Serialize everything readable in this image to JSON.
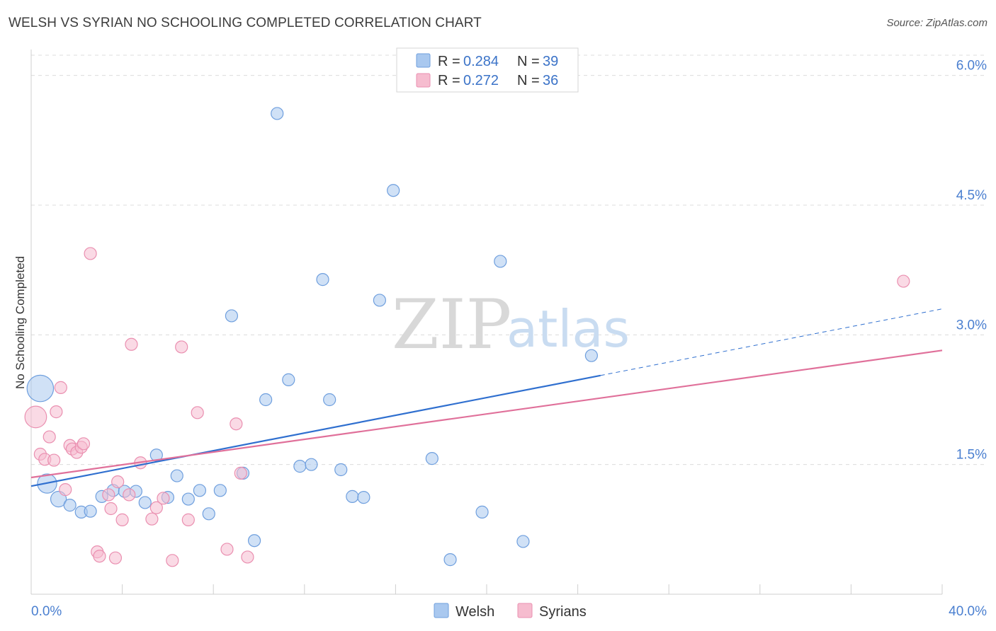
{
  "title": "WELSH VS SYRIAN NO SCHOOLING COMPLETED CORRELATION CHART",
  "source": "Source: ZipAtlas.com",
  "watermark": {
    "zip": "ZIP",
    "atlas": "atlas"
  },
  "colors": {
    "welsh_fill": "#a9c8ef",
    "welsh_stroke": "#6f9fde",
    "welsh_line": "#2f6fcf",
    "syrian_fill": "#f6bccf",
    "syrian_stroke": "#ea8fb0",
    "syrian_line": "#e0709a",
    "grid": "#dcdcdc",
    "tick_text": "#4a7fd0"
  },
  "legend": {
    "rows": [
      {
        "r_label": "R =",
        "r_value": "0.284",
        "n_label": "N =",
        "n_value": "39"
      },
      {
        "r_label": "R =",
        "r_value": "0.272",
        "n_label": "N =",
        "n_value": "36"
      }
    ]
  },
  "chart_data": {
    "type": "scatter",
    "title": "WELSH VS SYRIAN NO SCHOOLING COMPLETED CORRELATION CHART",
    "xlabel": "",
    "ylabel": "No Schooling Completed",
    "xlim": [
      0,
      40
    ],
    "ylim": [
      0,
      6.3
    ],
    "x_tick_labels": [
      "0.0%",
      "40.0%"
    ],
    "y_ticks": [
      1.5,
      3.0,
      4.5,
      6.0
    ],
    "y_tick_labels": [
      "1.5%",
      "3.0%",
      "4.5%",
      "6.0%"
    ],
    "legend_position": "top-center",
    "series": [
      {
        "name": "Welsh",
        "points": [
          [
            0.4,
            2.38,
            2.2
          ],
          [
            0.7,
            1.28,
            1.6
          ],
          [
            1.2,
            1.1,
            1.3
          ],
          [
            1.7,
            1.03,
            1
          ],
          [
            2.2,
            0.95,
            1
          ],
          [
            2.6,
            0.96,
            1
          ],
          [
            3.1,
            1.13,
            1
          ],
          [
            3.6,
            1.2,
            1
          ],
          [
            4.1,
            1.19,
            1
          ],
          [
            4.6,
            1.19,
            1
          ],
          [
            5.0,
            1.06,
            1
          ],
          [
            5.5,
            1.61,
            1
          ],
          [
            6.0,
            1.12,
            1
          ],
          [
            6.4,
            1.37,
            1
          ],
          [
            6.9,
            1.1,
            1
          ],
          [
            7.4,
            1.2,
            1
          ],
          [
            7.8,
            0.93,
            1
          ],
          [
            8.3,
            1.2,
            1
          ],
          [
            8.8,
            3.22,
            1
          ],
          [
            9.3,
            1.4,
            1
          ],
          [
            9.8,
            0.62,
            1
          ],
          [
            10.3,
            2.25,
            1
          ],
          [
            10.8,
            5.56,
            1
          ],
          [
            11.3,
            2.48,
            1
          ],
          [
            11.8,
            1.48,
            1
          ],
          [
            12.3,
            1.5,
            1
          ],
          [
            12.8,
            3.64,
            1
          ],
          [
            13.1,
            2.25,
            1
          ],
          [
            13.6,
            1.44,
            1
          ],
          [
            14.1,
            1.13,
            1
          ],
          [
            14.6,
            1.12,
            1
          ],
          [
            15.3,
            3.4,
            1
          ],
          [
            15.9,
            4.67,
            1
          ],
          [
            17.6,
            1.57,
            1
          ],
          [
            18.4,
            0.4,
            1
          ],
          [
            19.8,
            0.95,
            1
          ],
          [
            20.6,
            3.85,
            1
          ],
          [
            21.6,
            0.61,
            1
          ],
          [
            24.6,
            2.76,
            1
          ]
        ],
        "trend": {
          "x": [
            0,
            25.0
          ],
          "y": [
            1.25,
            2.53
          ],
          "dashed_x": [
            25.0,
            40.0
          ],
          "dashed_y": [
            2.53,
            3.3
          ]
        }
      },
      {
        "name": "Syrians",
        "points": [
          [
            0.2,
            2.05,
            1.8
          ],
          [
            0.4,
            1.62,
            1
          ],
          [
            0.6,
            1.56,
            1
          ],
          [
            0.8,
            1.82,
            1
          ],
          [
            1.0,
            1.55,
            1
          ],
          [
            1.1,
            2.11,
            1
          ],
          [
            1.3,
            2.39,
            1
          ],
          [
            1.5,
            1.21,
            1
          ],
          [
            1.7,
            1.72,
            1
          ],
          [
            1.8,
            1.68,
            1
          ],
          [
            2.0,
            1.64,
            1
          ],
          [
            2.2,
            1.7,
            1
          ],
          [
            2.3,
            1.74,
            1
          ],
          [
            2.6,
            3.94,
            1
          ],
          [
            2.9,
            0.49,
            1
          ],
          [
            3.0,
            0.44,
            1
          ],
          [
            3.4,
            1.15,
            1
          ],
          [
            3.5,
            0.99,
            1
          ],
          [
            3.7,
            0.42,
            1
          ],
          [
            3.8,
            1.3,
            1
          ],
          [
            4.0,
            0.86,
            1
          ],
          [
            4.3,
            1.15,
            1
          ],
          [
            4.4,
            2.89,
            1
          ],
          [
            4.8,
            1.52,
            1
          ],
          [
            5.3,
            0.87,
            1
          ],
          [
            5.5,
            1.0,
            1
          ],
          [
            5.8,
            1.11,
            1
          ],
          [
            6.2,
            0.39,
            1
          ],
          [
            6.6,
            2.86,
            1
          ],
          [
            6.9,
            0.86,
            1
          ],
          [
            7.3,
            2.1,
            1
          ],
          [
            8.6,
            0.52,
            1
          ],
          [
            9.0,
            1.97,
            1
          ],
          [
            9.2,
            1.4,
            1
          ],
          [
            9.5,
            0.43,
            1
          ],
          [
            38.3,
            3.62,
            1
          ]
        ],
        "trend": {
          "x": [
            0,
            40.0
          ],
          "y": [
            1.35,
            2.82
          ]
        }
      }
    ]
  },
  "bottom_legend": [
    {
      "label": "Welsh"
    },
    {
      "label": "Syrians"
    }
  ]
}
